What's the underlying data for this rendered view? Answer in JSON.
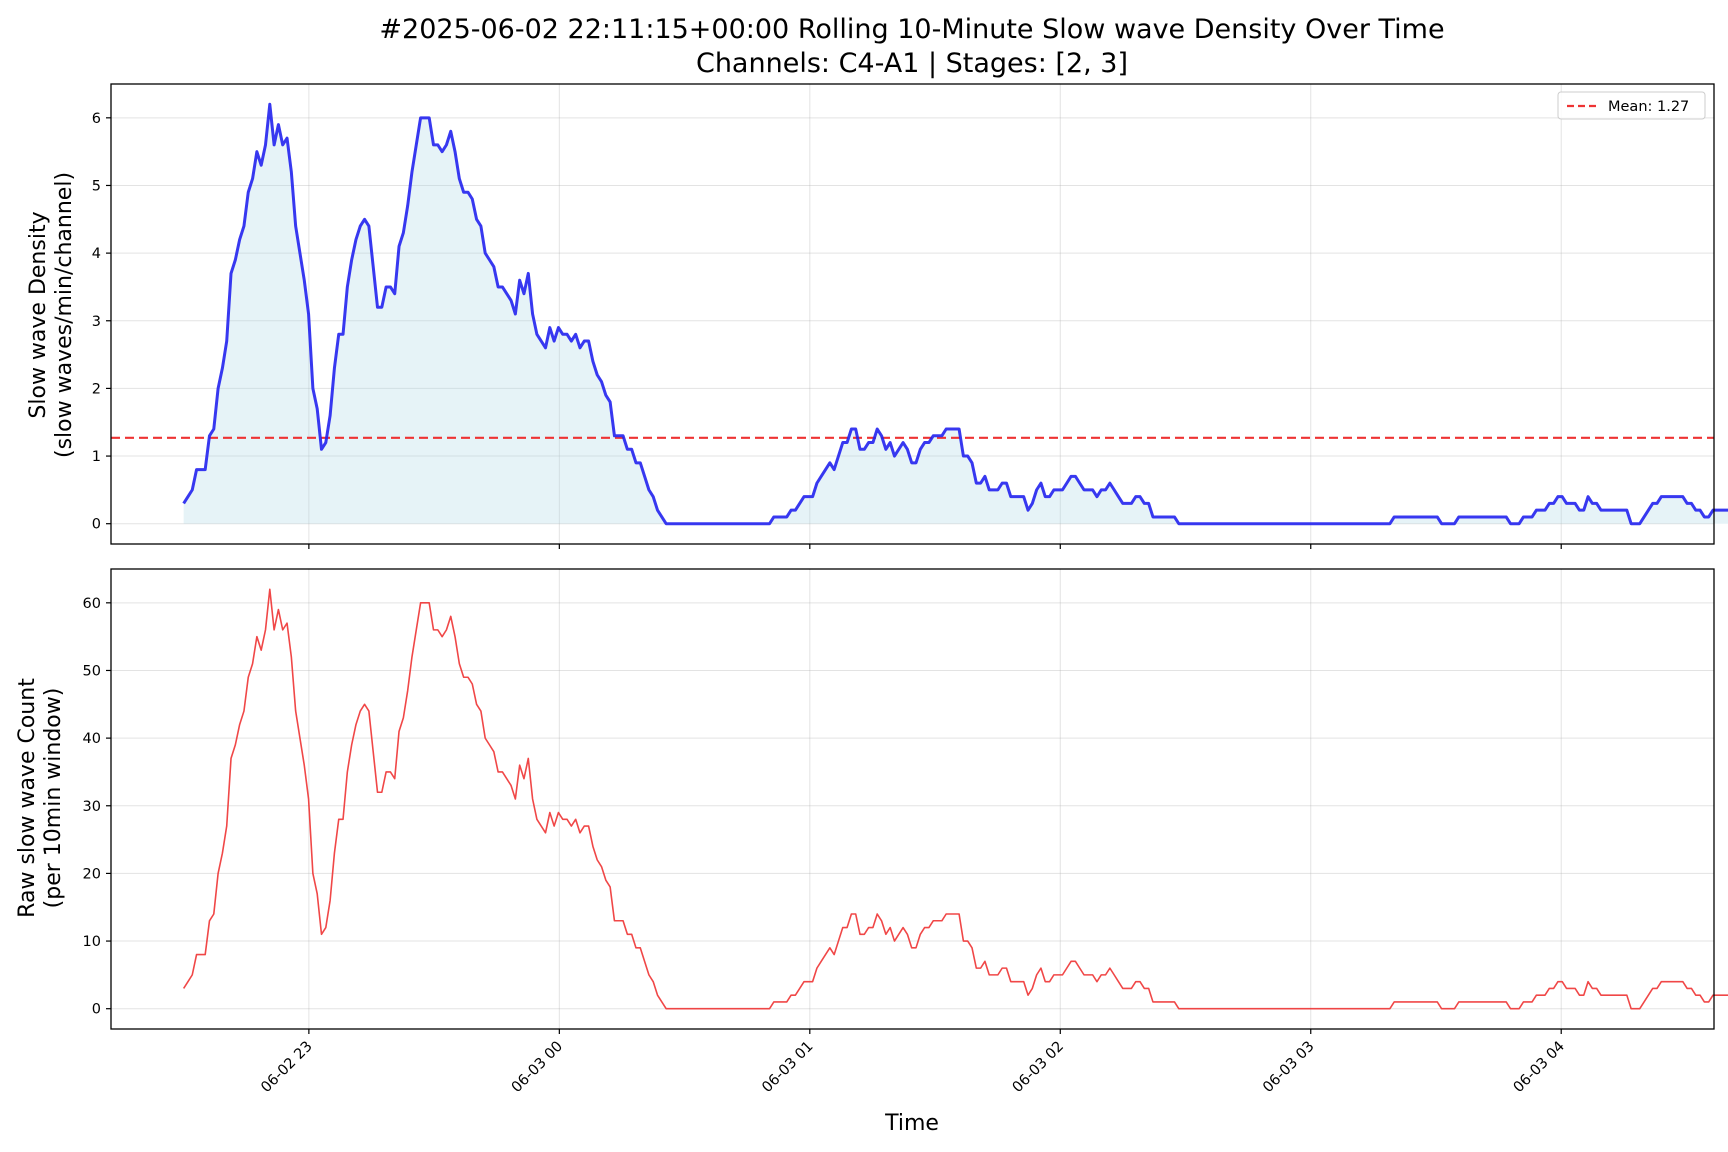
{
  "chart_data": {
    "type": "line",
    "title": "#2025-06-02 22:11:15+00:00 Rolling 10-Minute Slow wave Density Over Time",
    "subtitle": "Channels: C4-A1 | Stages: [2, 3]",
    "xlabel": "Time",
    "x_ticks": [
      "06-02 23",
      "06-03 00",
      "06-03 01",
      "06-03 02",
      "06-03 03",
      "06-03 04"
    ],
    "x_tick_hours": [
      0,
      1,
      2,
      3,
      4,
      5
    ],
    "x_start_hours": -0.5,
    "x_step_hours": 0.0172,
    "xlim_hours": [
      -0.79,
      5.61
    ],
    "grid": true,
    "panels": [
      {
        "name": "density",
        "ylabel_line1": "Slow wave Density",
        "ylabel_line2": "(slow waves/min/channel)",
        "ylim": [
          -0.3,
          6.5
        ],
        "yticks": [
          0,
          1,
          2,
          3,
          4,
          5,
          6
        ],
        "color": "#2222ee",
        "fill_color": "#add8e6",
        "legend_position": "upper right",
        "mean_value": 1.27,
        "mean_label": "Mean: 1.27",
        "mean_color": "#ee3333"
      },
      {
        "name": "raw-count",
        "ylabel_line1": "Raw slow wave Count",
        "ylabel_line2": "(per 10min window)",
        "ylim": [
          -3,
          65
        ],
        "yticks": [
          0,
          10,
          20,
          30,
          40,
          50,
          60
        ],
        "color": "#ee3333"
      }
    ],
    "series": [
      {
        "name": "Raw slow wave Count",
        "values": [
          3,
          4,
          5,
          8,
          8,
          8,
          13,
          14,
          20,
          23,
          27,
          37,
          39,
          42,
          44,
          49,
          51,
          55,
          53,
          56,
          62,
          56,
          59,
          56,
          57,
          52,
          44,
          40,
          36,
          31,
          20,
          17,
          11,
          12,
          16,
          23,
          28,
          28,
          35,
          39,
          42,
          44,
          45,
          44,
          38,
          32,
          32,
          35,
          35,
          34,
          41,
          43,
          47,
          52,
          56,
          60,
          60,
          60,
          56,
          56,
          55,
          56,
          58,
          55,
          51,
          49,
          49,
          48,
          45,
          44,
          40,
          39,
          38,
          35,
          35,
          34,
          33,
          31,
          36,
          34,
          37,
          31,
          28,
          27,
          26,
          29,
          27,
          29,
          28,
          28,
          27,
          28,
          26,
          27,
          27,
          24,
          22,
          21,
          19,
          18,
          13,
          13,
          13,
          11,
          11,
          9,
          9,
          7,
          5,
          4,
          2,
          1,
          0,
          0,
          0,
          0,
          0,
          0,
          0,
          0,
          0,
          0,
          0,
          0,
          0,
          0,
          0,
          0,
          0,
          0,
          0,
          0,
          0,
          0,
          0,
          0,
          0,
          1,
          1,
          1,
          1,
          2,
          2,
          3,
          4,
          4,
          4,
          6,
          7,
          8,
          9,
          8,
          10,
          12,
          12,
          14,
          14,
          11,
          11,
          12,
          12,
          14,
          13,
          11,
          12,
          10,
          11,
          12,
          11,
          9,
          9,
          11,
          12,
          12,
          13,
          13,
          13,
          14,
          14,
          14,
          14,
          10,
          10,
          9,
          6,
          6,
          7,
          5,
          5,
          5,
          6,
          6,
          4,
          4,
          4,
          4,
          2,
          3,
          5,
          6,
          4,
          4,
          5,
          5,
          5,
          6,
          7,
          7,
          6,
          5,
          5,
          5,
          4,
          5,
          5,
          6,
          5,
          4,
          3,
          3,
          3,
          4,
          4,
          3,
          3,
          1,
          1,
          1,
          1,
          1,
          1,
          0,
          0,
          0,
          0,
          0,
          0,
          0,
          0,
          0,
          0,
          0,
          0,
          0,
          0,
          0,
          0,
          0,
          0,
          0,
          0,
          0,
          0,
          0,
          0,
          0,
          0,
          0,
          0,
          0,
          0,
          0,
          0,
          0,
          0,
          0,
          0,
          0,
          0,
          0,
          0,
          0,
          0,
          0,
          0,
          0,
          0,
          0,
          0,
          0,
          0,
          1,
          1,
          1,
          1,
          1,
          1,
          1,
          1,
          1,
          1,
          1,
          0,
          0,
          0,
          0,
          1,
          1,
          1,
          1,
          1,
          1,
          1,
          1,
          1,
          1,
          1,
          1,
          0,
          0,
          0,
          1,
          1,
          1,
          2,
          2,
          2,
          3,
          3,
          4,
          4,
          3,
          3,
          3,
          2,
          2,
          4,
          3,
          3,
          2,
          2,
          2,
          2,
          2,
          2,
          2,
          0,
          0,
          0,
          1,
          2,
          3,
          3,
          4,
          4,
          4,
          4,
          4,
          4,
          3,
          3,
          2,
          2,
          1,
          1,
          2,
          2,
          2,
          2,
          2,
          1
        ]
      },
      {
        "name": "Slow wave Density",
        "values": [
          0.3,
          0.4,
          0.5,
          0.8,
          0.8,
          0.8,
          1.3,
          1.4,
          2.0,
          2.3,
          2.7,
          3.7,
          3.9,
          4.2,
          4.4,
          4.9,
          5.1,
          5.5,
          5.3,
          5.6,
          6.2,
          5.6,
          5.9,
          5.6,
          5.7,
          5.2,
          4.4,
          4.0,
          3.6,
          3.1,
          2.0,
          1.7,
          1.1,
          1.2,
          1.6,
          2.3,
          2.8,
          2.8,
          3.5,
          3.9,
          4.2,
          4.4,
          4.5,
          4.4,
          3.8,
          3.2,
          3.2,
          3.5,
          3.5,
          3.4,
          4.1,
          4.3,
          4.7,
          5.2,
          5.6,
          6.0,
          6.0,
          6.0,
          5.6,
          5.6,
          5.5,
          5.6,
          5.8,
          5.5,
          5.1,
          4.9,
          4.9,
          4.8,
          4.5,
          4.4,
          4.0,
          3.9,
          3.8,
          3.5,
          3.5,
          3.4,
          3.3,
          3.1,
          3.6,
          3.4,
          3.7,
          3.1,
          2.8,
          2.7,
          2.6,
          2.9,
          2.7,
          2.9,
          2.8,
          2.8,
          2.7,
          2.8,
          2.6,
          2.7,
          2.7,
          2.4,
          2.2,
          2.1,
          1.9,
          1.8,
          1.3,
          1.3,
          1.3,
          1.1,
          1.1,
          0.9,
          0.9,
          0.7,
          0.5,
          0.4,
          0.2,
          0.1,
          0,
          0,
          0,
          0,
          0,
          0,
          0,
          0,
          0,
          0,
          0,
          0,
          0,
          0,
          0,
          0,
          0,
          0,
          0,
          0,
          0,
          0,
          0,
          0,
          0,
          0.1,
          0.1,
          0.1,
          0.1,
          0.2,
          0.2,
          0.3,
          0.4,
          0.4,
          0.4,
          0.6,
          0.7,
          0.8,
          0.9,
          0.8,
          1.0,
          1.2,
          1.2,
          1.4,
          1.4,
          1.1,
          1.1,
          1.2,
          1.2,
          1.4,
          1.3,
          1.1,
          1.2,
          1.0,
          1.1,
          1.2,
          1.1,
          0.9,
          0.9,
          1.1,
          1.2,
          1.2,
          1.3,
          1.3,
          1.3,
          1.4,
          1.4,
          1.4,
          1.4,
          1.0,
          1.0,
          0.9,
          0.6,
          0.6,
          0.7,
          0.5,
          0.5,
          0.5,
          0.6,
          0.6,
          0.4,
          0.4,
          0.4,
          0.4,
          0.2,
          0.3,
          0.5,
          0.6,
          0.4,
          0.4,
          0.5,
          0.5,
          0.5,
          0.6,
          0.7,
          0.7,
          0.6,
          0.5,
          0.5,
          0.5,
          0.4,
          0.5,
          0.5,
          0.6,
          0.5,
          0.4,
          0.3,
          0.3,
          0.3,
          0.4,
          0.4,
          0.3,
          0.3,
          0.1,
          0.1,
          0.1,
          0.1,
          0.1,
          0.1,
          0,
          0,
          0,
          0,
          0,
          0,
          0,
          0,
          0,
          0,
          0,
          0,
          0,
          0,
          0,
          0,
          0,
          0,
          0,
          0,
          0,
          0,
          0,
          0,
          0,
          0,
          0,
          0,
          0,
          0,
          0,
          0,
          0,
          0,
          0,
          0,
          0,
          0,
          0,
          0,
          0,
          0,
          0,
          0,
          0,
          0,
          0,
          0,
          0,
          0,
          0.1,
          0.1,
          0.1,
          0.1,
          0.1,
          0.1,
          0.1,
          0.1,
          0.1,
          0.1,
          0.1,
          0,
          0,
          0,
          0,
          0.1,
          0.1,
          0.1,
          0.1,
          0.1,
          0.1,
          0.1,
          0.1,
          0.1,
          0.1,
          0.1,
          0.1,
          0,
          0,
          0,
          0.1,
          0.1,
          0.1,
          0.2,
          0.2,
          0.2,
          0.3,
          0.3,
          0.4,
          0.4,
          0.3,
          0.3,
          0.3,
          0.2,
          0.2,
          0.4,
          0.3,
          0.3,
          0.2,
          0.2,
          0.2,
          0.2,
          0.2,
          0.2,
          0.2,
          0,
          0,
          0,
          0.1,
          0.2,
          0.3,
          0.3,
          0.4,
          0.4,
          0.4,
          0.4,
          0.4,
          0.4,
          0.3,
          0.3,
          0.2,
          0.2,
          0.1,
          0.1,
          0.2,
          0.2,
          0.2,
          0.2,
          0.2,
          0.1
        ]
      }
    ]
  }
}
